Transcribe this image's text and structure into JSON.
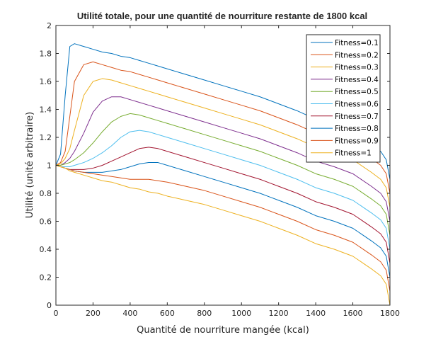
{
  "chart_data": {
    "type": "line",
    "title": "Utilité totale, pour une quantité de nourriture restante de 1800 kcal",
    "xlabel": "Quantité de nourriture mangée (kcal)",
    "ylabel": "Utilité (unité arbitraire)",
    "xlim": [
      0,
      1800
    ],
    "ylim": [
      0,
      2
    ],
    "xticks": [
      0,
      200,
      400,
      600,
      800,
      1000,
      1200,
      1400,
      1600,
      1800
    ],
    "yticks": [
      0,
      0.2,
      0.4,
      0.6,
      0.8,
      1,
      1.2,
      1.4,
      1.6,
      1.8,
      2
    ],
    "xtick_labels": [
      "0",
      "200",
      "400",
      "600",
      "800",
      "1000",
      "1200",
      "1400",
      "1600",
      "1800"
    ],
    "ytick_labels": [
      "0",
      "0.2",
      "0.4",
      "0.6",
      "0.8",
      "1",
      "1.2",
      "1.4",
      "1.6",
      "1.8",
      "2"
    ],
    "grid": false,
    "legend_position": "top-right",
    "x": [
      0,
      25,
      50,
      75,
      100,
      150,
      200,
      250,
      300,
      350,
      400,
      450,
      500,
      550,
      600,
      700,
      800,
      900,
      1000,
      1100,
      1200,
      1300,
      1400,
      1500,
      1600,
      1700,
      1750,
      1780,
      1800
    ],
    "series": [
      {
        "name": "Fitness=0.1",
        "color": "#0072BD",
        "values": [
          1.0,
          1.08,
          1.5,
          1.85,
          1.87,
          1.85,
          1.83,
          1.81,
          1.8,
          1.78,
          1.77,
          1.75,
          1.73,
          1.71,
          1.69,
          1.65,
          1.61,
          1.57,
          1.53,
          1.49,
          1.44,
          1.39,
          1.33,
          1.29,
          1.24,
          1.15,
          1.1,
          1.04,
          0.9
        ]
      },
      {
        "name": "Fitness=0.2",
        "color": "#D95319",
        "values": [
          1.0,
          1.02,
          1.1,
          1.35,
          1.6,
          1.72,
          1.74,
          1.72,
          1.7,
          1.68,
          1.67,
          1.65,
          1.63,
          1.61,
          1.59,
          1.55,
          1.51,
          1.47,
          1.43,
          1.39,
          1.34,
          1.29,
          1.23,
          1.19,
          1.14,
          1.05,
          1.0,
          0.94,
          0.8
        ]
      },
      {
        "name": "Fitness=0.3",
        "color": "#EDB120",
        "values": [
          1.0,
          1.01,
          1.05,
          1.12,
          1.25,
          1.5,
          1.6,
          1.62,
          1.61,
          1.59,
          1.57,
          1.55,
          1.53,
          1.51,
          1.49,
          1.45,
          1.41,
          1.37,
          1.33,
          1.29,
          1.24,
          1.19,
          1.13,
          1.09,
          1.04,
          0.95,
          0.9,
          0.84,
          0.7
        ]
      },
      {
        "name": "Fitness=0.4",
        "color": "#7E2F8E",
        "values": [
          1.0,
          1.0,
          1.02,
          1.05,
          1.1,
          1.23,
          1.38,
          1.46,
          1.49,
          1.49,
          1.47,
          1.45,
          1.43,
          1.41,
          1.39,
          1.35,
          1.31,
          1.27,
          1.23,
          1.19,
          1.14,
          1.09,
          1.03,
          0.99,
          0.94,
          0.85,
          0.8,
          0.74,
          0.6
        ]
      },
      {
        "name": "Fitness=0.5",
        "color": "#77AC30",
        "values": [
          1.0,
          1.0,
          1.01,
          1.02,
          1.04,
          1.09,
          1.16,
          1.24,
          1.31,
          1.35,
          1.37,
          1.36,
          1.34,
          1.32,
          1.3,
          1.26,
          1.22,
          1.18,
          1.14,
          1.1,
          1.05,
          1.0,
          0.94,
          0.9,
          0.85,
          0.76,
          0.71,
          0.65,
          0.5
        ]
      },
      {
        "name": "Fitness=0.6",
        "color": "#4DBEEE",
        "values": [
          1.0,
          0.99,
          0.99,
          0.99,
          1.0,
          1.02,
          1.05,
          1.09,
          1.14,
          1.2,
          1.24,
          1.25,
          1.24,
          1.22,
          1.2,
          1.16,
          1.12,
          1.08,
          1.04,
          1.0,
          0.95,
          0.9,
          0.84,
          0.8,
          0.75,
          0.66,
          0.61,
          0.55,
          0.4
        ]
      },
      {
        "name": "Fitness=0.7",
        "color": "#A2142F",
        "values": [
          1.0,
          0.99,
          0.98,
          0.97,
          0.97,
          0.97,
          0.98,
          1.0,
          1.03,
          1.06,
          1.09,
          1.12,
          1.13,
          1.12,
          1.1,
          1.06,
          1.02,
          0.98,
          0.94,
          0.9,
          0.85,
          0.8,
          0.74,
          0.7,
          0.65,
          0.56,
          0.51,
          0.45,
          0.3
        ]
      },
      {
        "name": "Fitness=0.8",
        "color": "#0072BD",
        "values": [
          1.0,
          0.99,
          0.98,
          0.97,
          0.96,
          0.95,
          0.95,
          0.95,
          0.96,
          0.97,
          0.99,
          1.01,
          1.02,
          1.02,
          1.0,
          0.96,
          0.92,
          0.88,
          0.84,
          0.8,
          0.75,
          0.7,
          0.64,
          0.6,
          0.55,
          0.46,
          0.41,
          0.35,
          0.2
        ]
      },
      {
        "name": "Fitness=0.9",
        "color": "#D95319",
        "values": [
          1.0,
          0.99,
          0.98,
          0.97,
          0.96,
          0.95,
          0.94,
          0.93,
          0.92,
          0.91,
          0.9,
          0.9,
          0.9,
          0.89,
          0.88,
          0.85,
          0.82,
          0.78,
          0.74,
          0.7,
          0.65,
          0.6,
          0.54,
          0.5,
          0.45,
          0.36,
          0.31,
          0.25,
          0.1
        ]
      },
      {
        "name": "Fitness=1",
        "color": "#EDB120",
        "values": [
          1.0,
          0.99,
          0.98,
          0.96,
          0.95,
          0.93,
          0.91,
          0.89,
          0.88,
          0.86,
          0.84,
          0.83,
          0.81,
          0.8,
          0.78,
          0.75,
          0.72,
          0.68,
          0.64,
          0.6,
          0.55,
          0.5,
          0.44,
          0.4,
          0.35,
          0.26,
          0.21,
          0.15,
          0.0
        ]
      }
    ]
  }
}
